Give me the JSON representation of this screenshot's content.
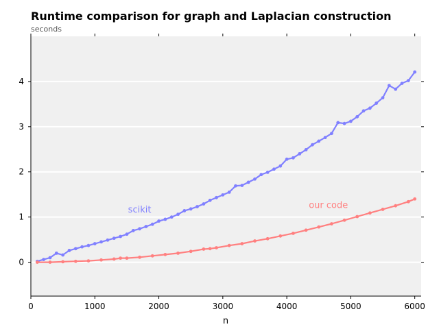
{
  "chart_data": {
    "type": "line",
    "title": "Runtime comparison for graph and Laplacian construction",
    "subtitle": "seconds",
    "xlabel": "n",
    "ylabel": "",
    "xlim": [
      0,
      6100
    ],
    "ylim": [
      -0.75,
      5.0
    ],
    "xticks": [
      0,
      1000,
      2000,
      3000,
      4000,
      5000,
      6000
    ],
    "yticks": [
      0,
      1,
      2,
      3,
      4
    ],
    "grid": "horizontal",
    "background": "#f0f0f0",
    "series": [
      {
        "name": "scikit",
        "color": "#8080ff",
        "label_at": [
          1700,
          1.1
        ],
        "x": [
          100,
          200,
          300,
          400,
          500,
          600,
          700,
          800,
          900,
          1000,
          1100,
          1200,
          1300,
          1400,
          1500,
          1600,
          1700,
          1800,
          1900,
          2000,
          2100,
          2200,
          2300,
          2400,
          2500,
          2600,
          2700,
          2800,
          2900,
          3000,
          3100,
          3200,
          3300,
          3400,
          3500,
          3600,
          3700,
          3800,
          3900,
          4000,
          4100,
          4200,
          4300,
          4400,
          4500,
          4600,
          4700,
          4800,
          4900,
          5000,
          5100,
          5200,
          5300,
          5400,
          5500,
          5600,
          5700,
          5800,
          5900,
          6000
        ],
        "y": [
          0.02,
          0.06,
          0.1,
          0.2,
          0.16,
          0.26,
          0.3,
          0.34,
          0.37,
          0.41,
          0.45,
          0.49,
          0.53,
          0.57,
          0.62,
          0.7,
          0.74,
          0.79,
          0.84,
          0.91,
          0.95,
          1.0,
          1.06,
          1.14,
          1.18,
          1.23,
          1.29,
          1.37,
          1.43,
          1.49,
          1.55,
          1.69,
          1.7,
          1.77,
          1.84,
          1.94,
          1.99,
          2.06,
          2.13,
          2.28,
          2.31,
          2.4,
          2.49,
          2.6,
          2.68,
          2.76,
          2.85,
          3.09,
          3.07,
          3.12,
          3.22,
          3.35,
          3.41,
          3.52,
          3.64,
          3.91,
          3.83,
          3.96,
          4.02,
          4.21
        ]
      },
      {
        "name": "our code",
        "color": "#ff8080",
        "label_at": [
          4650,
          1.2
        ],
        "x": [
          100,
          300,
          500,
          700,
          900,
          1100,
          1300,
          1400,
          1500,
          1700,
          1900,
          2100,
          2300,
          2500,
          2700,
          2800,
          2900,
          3100,
          3300,
          3500,
          3700,
          3900,
          4100,
          4300,
          4500,
          4700,
          4900,
          5100,
          5300,
          5500,
          5700,
          5900,
          6000
        ],
        "y": [
          0.0,
          0.0,
          0.01,
          0.02,
          0.03,
          0.05,
          0.07,
          0.09,
          0.09,
          0.11,
          0.14,
          0.17,
          0.2,
          0.24,
          0.29,
          0.3,
          0.32,
          0.37,
          0.41,
          0.47,
          0.52,
          0.58,
          0.64,
          0.71,
          0.78,
          0.85,
          0.93,
          1.01,
          1.09,
          1.17,
          1.25,
          1.34,
          1.4
        ]
      }
    ]
  }
}
